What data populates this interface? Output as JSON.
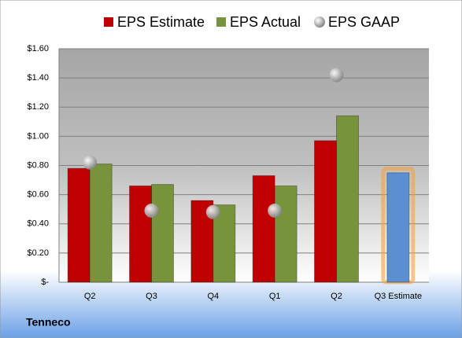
{
  "chart_data": {
    "type": "bar",
    "caption": "Tenneco",
    "categories": [
      "Q2",
      "Q3",
      "Q4",
      "Q1",
      "Q2",
      "Q3 Estimate"
    ],
    "series": [
      {
        "name": "EPS Estimate",
        "color": "#c00000",
        "values": [
          0.78,
          0.66,
          0.56,
          0.73,
          0.97,
          0.75
        ],
        "colors": [
          "#c00000",
          "#c00000",
          "#c00000",
          "#c00000",
          "#c00000",
          "#5b8fd1"
        ]
      },
      {
        "name": "EPS Actual",
        "color": "#77933c",
        "values": [
          0.81,
          0.67,
          0.53,
          0.66,
          1.14,
          null
        ]
      },
      {
        "name": "EPS GAAP",
        "color": "#a6a6a6",
        "type": "scatter",
        "values": [
          0.82,
          0.49,
          0.48,
          0.49,
          1.42,
          null
        ]
      }
    ],
    "ylim": [
      0,
      1.6
    ],
    "yticks": [
      {
        "value": 0,
        "label": "$-"
      },
      {
        "value": 0.2,
        "label": "$0.20"
      },
      {
        "value": 0.4,
        "label": "$0.40"
      },
      {
        "value": 0.6,
        "label": "$0.60"
      },
      {
        "value": 0.8,
        "label": "$0.80"
      },
      {
        "value": 1.0,
        "label": "$1.00"
      },
      {
        "value": 1.2,
        "label": "$1.20"
      },
      {
        "value": 1.4,
        "label": "$1.40"
      },
      {
        "value": 1.6,
        "label": "$1.60"
      }
    ],
    "grid": true,
    "legend": "top"
  }
}
